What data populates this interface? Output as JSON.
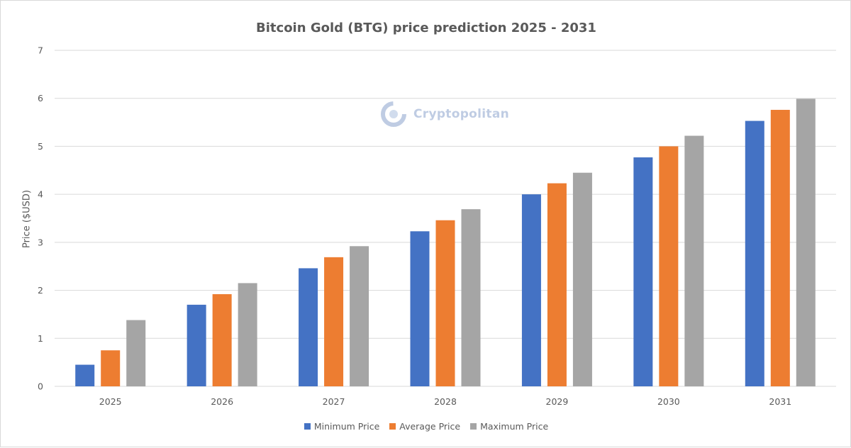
{
  "colors": {
    "min": "#4472c4",
    "avg": "#ed7d31",
    "max": "#a5a5a5",
    "grid": "#d9d9d9",
    "text": "#595959"
  },
  "watermark": {
    "text": "Cryptopolitan",
    "icon": "cryptopolitan-logo-icon"
  },
  "chart_data": {
    "type": "bar",
    "title": "Bitcoin Gold (BTG) price prediction 2025 - 2031",
    "xlabel": "",
    "ylabel": "Price ($USD)",
    "ylim": [
      0,
      7
    ],
    "yticks": [
      "0",
      "1",
      "2",
      "3",
      "4",
      "5",
      "6",
      "7"
    ],
    "grid": true,
    "legend_position": "bottom",
    "categories": [
      "2025",
      "2026",
      "2027",
      "2028",
      "2029",
      "2030",
      "2031"
    ],
    "series": [
      {
        "name": "Minimum Price",
        "color": "#4472c4",
        "values": [
          0.45,
          1.7,
          2.46,
          3.23,
          4.0,
          4.77,
          5.53
        ]
      },
      {
        "name": "Average Price",
        "color": "#ed7d31",
        "values": [
          0.75,
          1.92,
          2.69,
          3.46,
          4.23,
          5.0,
          5.76
        ]
      },
      {
        "name": "Maximum Price",
        "color": "#a5a5a5",
        "values": [
          1.38,
          2.15,
          2.92,
          3.69,
          4.45,
          5.22,
          5.99
        ]
      }
    ]
  }
}
